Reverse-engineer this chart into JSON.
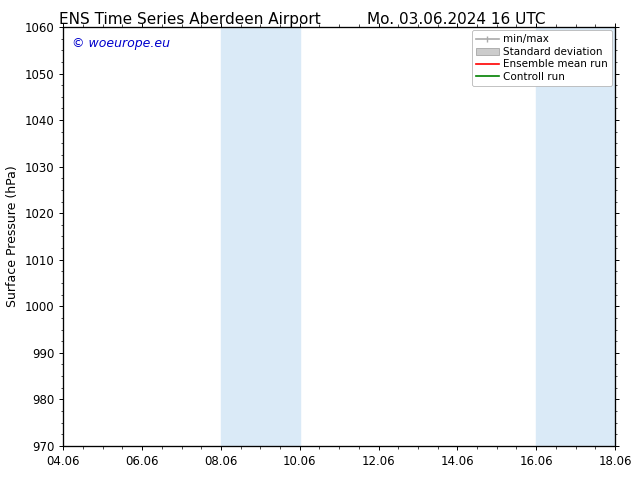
{
  "title_left": "ENS Time Series Aberdeen Airport",
  "title_right": "Mo. 03.06.2024 16 UTC",
  "ylabel": "Surface Pressure (hPa)",
  "ylim": [
    970,
    1060
  ],
  "yticks": [
    970,
    980,
    990,
    1000,
    1010,
    1020,
    1030,
    1040,
    1050,
    1060
  ],
  "xticks_labels": [
    "04.06",
    "06.06",
    "08.06",
    "10.06",
    "12.06",
    "14.06",
    "16.06",
    "18.06"
  ],
  "xticks_values": [
    0,
    2,
    4,
    6,
    8,
    10,
    12,
    14
  ],
  "shaded_bands": [
    {
      "x_start": 4,
      "x_end": 6
    },
    {
      "x_start": 12,
      "x_end": 14
    }
  ],
  "shade_color": "#daeaf7",
  "watermark_text": "© woeurope.eu",
  "watermark_color": "#0000cc",
  "legend_entries": [
    {
      "label": "min/max"
    },
    {
      "label": "Standard deviation"
    },
    {
      "label": "Ensemble mean run"
    },
    {
      "label": "Controll run"
    }
  ],
  "minmax_color": "#aaaaaa",
  "stddev_color": "#cccccc",
  "ensemble_color": "red",
  "control_color": "green",
  "background_color": "#ffffff",
  "title_fontsize": 11,
  "label_fontsize": 9,
  "tick_fontsize": 8.5,
  "legend_fontsize": 7.5,
  "watermark_fontsize": 9
}
